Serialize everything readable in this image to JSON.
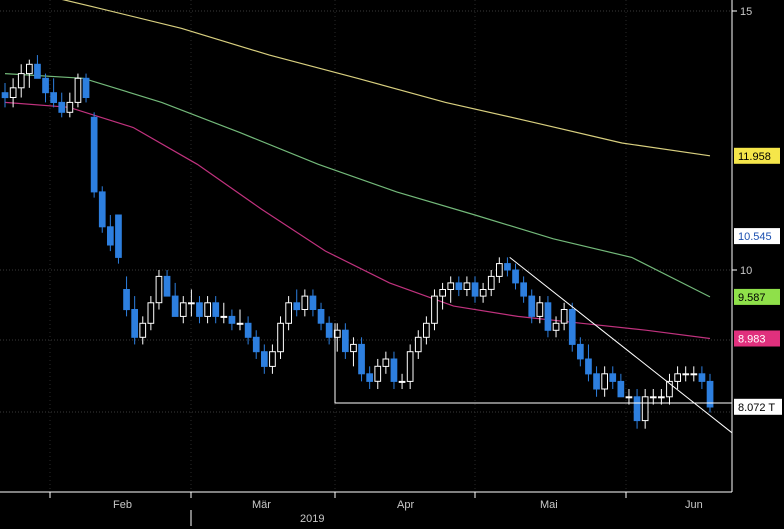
{
  "chart_data": {
    "type": "candlestick",
    "x_axis": {
      "month_labels": [
        "Feb",
        "Mär",
        "Apr",
        "Mai",
        "Jun"
      ],
      "year_label": "2019"
    },
    "y_axis": {
      "scale": "log",
      "range": [
        6.8,
        15.3
      ],
      "tick_labels": [
        15,
        10
      ]
    },
    "grid": true,
    "colors": {
      "background": "#000000",
      "up_candle": "#ffffff",
      "down_candle": "#2d7fdf",
      "ma_200": "#d8cf7f",
      "ma_100": "#73b97a",
      "ma_50": "#c0327e",
      "trendline": "#ffffff"
    },
    "series": [
      {
        "value": 11.958,
        "label": "11.958",
        "color": "#f5e64a",
        "text_color": "#000000"
      },
      {
        "value": 10.545,
        "label": "10.545",
        "color": "#ffffff",
        "text_color": "#1a4fb0"
      },
      {
        "value": 9.587,
        "label": "9.587",
        "color": "#8fe04a",
        "text_color": "#000000"
      },
      {
        "value": 8.983,
        "label": "8.983",
        "color": "#e0307d",
        "text_color": "#ffffff"
      },
      {
        "value": 8.072,
        "label": "8.072 T",
        "color": "#ffffff",
        "text_color": "#000000"
      }
    ],
    "candles": [
      [
        13.2,
        13.4,
        12.9,
        13.1
      ],
      [
        13.1,
        13.5,
        12.9,
        13.3
      ],
      [
        13.3,
        13.8,
        13.1,
        13.6
      ],
      [
        13.6,
        13.9,
        13.3,
        13.8
      ],
      [
        13.8,
        14.0,
        13.5,
        13.5
      ],
      [
        13.5,
        13.6,
        13.0,
        13.2
      ],
      [
        13.2,
        13.5,
        12.9,
        13.0
      ],
      [
        13.0,
        13.2,
        12.7,
        12.8
      ],
      [
        12.8,
        13.2,
        12.7,
        13.0
      ],
      [
        13.0,
        13.6,
        12.9,
        13.5
      ],
      [
        13.5,
        13.6,
        13.0,
        13.1
      ],
      [
        12.7,
        12.8,
        11.2,
        11.3
      ],
      [
        11.3,
        11.4,
        10.6,
        10.7
      ],
      [
        10.7,
        10.9,
        10.3,
        10.4
      ],
      [
        10.9,
        10.9,
        10.1,
        10.2
      ],
      [
        9.7,
        9.9,
        9.3,
        9.4
      ],
      [
        9.4,
        9.6,
        8.9,
        9.0
      ],
      [
        9.0,
        9.3,
        8.9,
        9.2
      ],
      [
        9.2,
        9.6,
        9.1,
        9.5
      ],
      [
        9.5,
        10.0,
        9.4,
        9.9
      ],
      [
        9.9,
        10.0,
        9.6,
        9.6
      ],
      [
        9.6,
        9.8,
        9.3,
        9.3
      ],
      [
        9.3,
        9.6,
        9.2,
        9.5
      ],
      [
        9.5,
        9.7,
        9.3,
        9.5
      ],
      [
        9.5,
        9.6,
        9.2,
        9.3
      ],
      [
        9.3,
        9.6,
        9.2,
        9.5
      ],
      [
        9.5,
        9.6,
        9.2,
        9.3
      ],
      [
        9.3,
        9.5,
        9.2,
        9.3
      ],
      [
        9.3,
        9.4,
        9.1,
        9.2
      ],
      [
        9.2,
        9.4,
        9.1,
        9.2
      ],
      [
        9.2,
        9.3,
        8.9,
        9.0
      ],
      [
        9.0,
        9.1,
        8.7,
        8.8
      ],
      [
        8.8,
        8.9,
        8.5,
        8.6
      ],
      [
        8.6,
        8.9,
        8.5,
        8.8
      ],
      [
        8.8,
        9.3,
        8.7,
        9.2
      ],
      [
        9.2,
        9.6,
        9.1,
        9.5
      ],
      [
        9.5,
        9.7,
        9.3,
        9.4
      ],
      [
        9.4,
        9.7,
        9.3,
        9.6
      ],
      [
        9.6,
        9.7,
        9.3,
        9.4
      ],
      [
        9.4,
        9.5,
        9.1,
        9.2
      ],
      [
        9.2,
        9.3,
        8.9,
        9.0
      ],
      [
        9.0,
        9.2,
        8.8,
        9.1
      ],
      [
        9.1,
        9.2,
        8.7,
        8.8
      ],
      [
        8.8,
        9.0,
        8.6,
        8.9
      ],
      [
        8.9,
        9.0,
        8.4,
        8.5
      ],
      [
        8.5,
        8.6,
        8.3,
        8.4
      ],
      [
        8.4,
        8.7,
        8.3,
        8.6
      ],
      [
        8.6,
        8.8,
        8.5,
        8.7
      ],
      [
        8.7,
        8.8,
        8.3,
        8.4
      ],
      [
        8.4,
        8.5,
        8.3,
        8.4
      ],
      [
        8.4,
        8.9,
        8.3,
        8.8
      ],
      [
        8.8,
        9.1,
        8.7,
        9.0
      ],
      [
        9.0,
        9.3,
        8.9,
        9.2
      ],
      [
        9.2,
        9.7,
        9.1,
        9.6
      ],
      [
        9.6,
        9.8,
        9.4,
        9.7
      ],
      [
        9.7,
        9.9,
        9.5,
        9.8
      ],
      [
        9.8,
        9.9,
        9.6,
        9.7
      ],
      [
        9.7,
        9.9,
        9.6,
        9.8
      ],
      [
        9.8,
        9.9,
        9.5,
        9.6
      ],
      [
        9.6,
        9.8,
        9.5,
        9.7
      ],
      [
        9.7,
        10.0,
        9.6,
        9.9
      ],
      [
        9.9,
        10.2,
        9.8,
        10.1
      ],
      [
        10.1,
        10.2,
        9.9,
        10.0
      ],
      [
        10.0,
        10.1,
        9.7,
        9.8
      ],
      [
        9.8,
        9.9,
        9.5,
        9.6
      ],
      [
        9.6,
        9.7,
        9.2,
        9.3
      ],
      [
        9.3,
        9.6,
        9.2,
        9.5
      ],
      [
        9.5,
        9.6,
        9.0,
        9.1
      ],
      [
        9.1,
        9.3,
        9.0,
        9.2
      ],
      [
        9.2,
        9.5,
        9.1,
        9.4
      ],
      [
        9.4,
        9.5,
        8.8,
        8.9
      ],
      [
        8.9,
        9.0,
        8.6,
        8.7
      ],
      [
        8.7,
        8.9,
        8.4,
        8.5
      ],
      [
        8.5,
        8.6,
        8.2,
        8.3
      ],
      [
        8.3,
        8.6,
        8.2,
        8.5
      ],
      [
        8.5,
        8.6,
        8.3,
        8.4
      ],
      [
        8.4,
        8.5,
        8.2,
        8.2
      ],
      [
        8.2,
        8.3,
        8.1,
        8.2
      ],
      [
        8.2,
        8.3,
        7.8,
        7.9
      ],
      [
        7.9,
        8.3,
        7.8,
        8.2
      ],
      [
        8.2,
        8.3,
        8.1,
        8.2
      ],
      [
        8.2,
        8.3,
        8.1,
        8.2
      ],
      [
        8.2,
        8.5,
        8.1,
        8.4
      ],
      [
        8.4,
        8.6,
        8.3,
        8.5
      ],
      [
        8.5,
        8.6,
        8.4,
        8.5
      ],
      [
        8.5,
        8.6,
        8.4,
        8.5
      ],
      [
        8.5,
        8.6,
        8.3,
        8.4
      ],
      [
        8.4,
        8.5,
        8.0,
        8.07
      ]
    ],
    "moving_averages": [
      {
        "values": [
          15.6,
          15.1,
          14.6,
          14.0,
          13.5,
          13.0,
          12.6,
          12.2,
          11.958
        ]
      },
      {
        "values": [
          13.6,
          13.5,
          13.0,
          12.4,
          11.8,
          11.3,
          10.9,
          10.5,
          10.2,
          9.587
        ]
      },
      {
        "values": [
          13.0,
          12.9,
          12.5,
          11.8,
          11.0,
          10.3,
          9.8,
          9.45,
          9.3,
          9.2,
          9.1,
          8.983
        ]
      }
    ],
    "trendline": {
      "from": [
        24.7,
        10.2
      ],
      "to": [
        35.0,
        7.75
      ]
    },
    "support": [
      8.12,
      8.06
    ]
  }
}
